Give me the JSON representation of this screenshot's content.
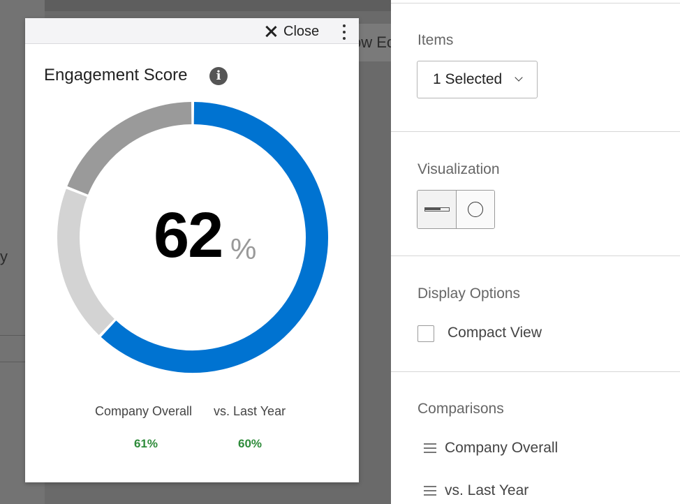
{
  "background": {
    "partial_text": "ow Ec",
    "partial_glyph": "y"
  },
  "widget": {
    "close_label": "Close",
    "title": "Engagement Score",
    "info_symbol": "i",
    "score_value": "62",
    "score_unit": "%",
    "comparisons": [
      {
        "label": "Company Overall",
        "value": "61%"
      },
      {
        "label": "vs. Last Year",
        "value": "60%"
      }
    ]
  },
  "chart_data": {
    "type": "pie",
    "style": "donut",
    "values": [
      62,
      19,
      19
    ],
    "segments": [
      {
        "value": 62,
        "color": "#0073d1"
      },
      {
        "value": 19,
        "color": "#d3d3d3"
      },
      {
        "value": 19,
        "color": "#9a9a9a"
      }
    ]
  },
  "panel": {
    "items": {
      "label": "Items",
      "dropdown_value": "1 Selected"
    },
    "visualization": {
      "label": "Visualization",
      "selected": "gauge",
      "options": [
        "bar-icon",
        "circle-icon"
      ]
    },
    "display_options": {
      "label": "Display Options",
      "compact_view_label": "Compact View",
      "compact_view_checked": false
    },
    "comparisons": {
      "label": "Comparisons",
      "items": [
        "Company Overall",
        "vs. Last Year"
      ]
    }
  },
  "colors": {
    "accent": "#0073d1",
    "positive": "#2e8b3a"
  }
}
